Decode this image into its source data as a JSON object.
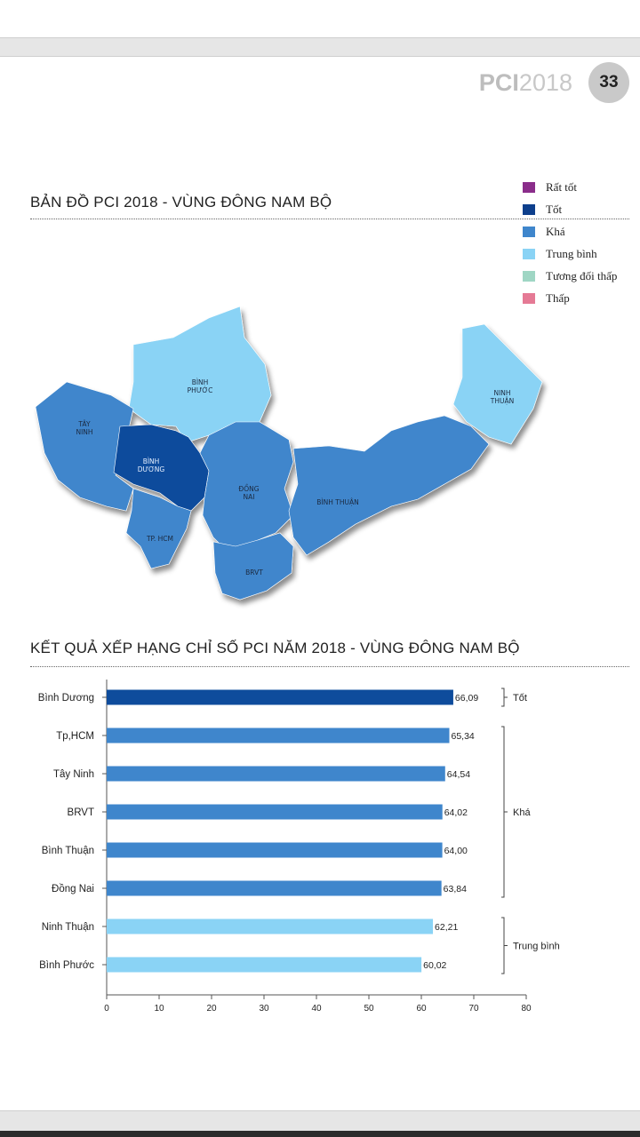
{
  "header": {
    "logo_bold": "PCI",
    "logo_year": "2018",
    "page_number": "33"
  },
  "map_section": {
    "title": "BẢN ĐỒ PCI 2018 - VÙNG ĐÔNG NAM BỘ",
    "legend": [
      {
        "label": "Rất tốt",
        "color": "#8a2d8a"
      },
      {
        "label": "Tốt",
        "color": "#0e3f8c"
      },
      {
        "label": "Khá",
        "color": "#3f86cc"
      },
      {
        "label": "Trung bình",
        "color": "#8ad3f5"
      },
      {
        "label": "Tương đối thấp",
        "color": "#9fd6c4"
      },
      {
        "label": "Thấp",
        "color": "#e57a95"
      }
    ],
    "regions": {
      "binh_phuoc": [
        "BÌNH",
        "PHƯỚC"
      ],
      "tay_ninh": [
        "TÂY",
        "NINH"
      ],
      "binh_duong": [
        "BÌNH",
        "DƯƠNG"
      ],
      "dong_nai": [
        "ĐỒNG",
        "NAI"
      ],
      "binh_thuan": [
        "BÌNH THUẬN"
      ],
      "ninh_thuan": [
        "NINH",
        "THUẬN"
      ],
      "tp_hcm": [
        "TP. HCM"
      ],
      "brvt": [
        "BRVT"
      ]
    }
  },
  "chart_section": {
    "title": "KẾT QUẢ XẾP HẠNG CHỈ SỐ PCI NĂM 2018 - VÙNG ĐÔNG NAM BỘ"
  },
  "chart_data": {
    "type": "bar",
    "orientation": "horizontal",
    "title": "KẾT QUẢ XẾP HẠNG CHỈ SỐ PCI NĂM 2018 - VÙNG ĐÔNG NAM BỘ",
    "categories": [
      "Bình Dương",
      "Tp,HCM",
      "Tây Ninh",
      "BRVT",
      "Bình Thuận",
      "Đồng Nai",
      "Ninh Thuận",
      "Bình Phước"
    ],
    "values": [
      66.09,
      65.34,
      64.54,
      64.02,
      64.0,
      63.84,
      62.21,
      60.02
    ],
    "value_labels": [
      "66,09",
      "65,34",
      "64,54",
      "64,02",
      "64,00",
      "63,84",
      "62,21",
      "60,02"
    ],
    "bar_colors": [
      "#0e4c9c",
      "#3f86cc",
      "#3f86cc",
      "#3f86cc",
      "#3f86cc",
      "#3f86cc",
      "#8ad3f5",
      "#8ad3f5"
    ],
    "xlim": [
      0,
      80
    ],
    "xticks": [
      "0",
      "10",
      "20",
      "30",
      "40",
      "50",
      "60",
      "70",
      "80"
    ],
    "groups": [
      {
        "label": "Tốt",
        "from": 0,
        "to": 0
      },
      {
        "label": "Khá",
        "from": 1,
        "to": 5
      },
      {
        "label": "Trung bình",
        "from": 6,
        "to": 7
      }
    ]
  }
}
